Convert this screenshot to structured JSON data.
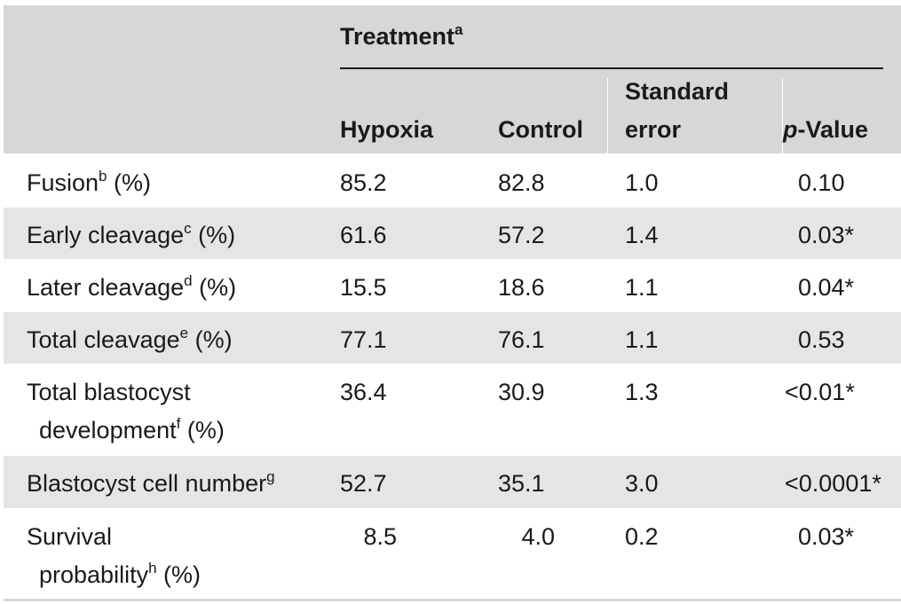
{
  "header": {
    "treatment": "Treatment",
    "treatment_sup": "a",
    "columns": {
      "hypoxia": "Hypoxia",
      "control": "Control",
      "se_line1": "Standard",
      "se_line2": "error",
      "p_italic": "p",
      "p_rest": "-Value"
    }
  },
  "rows": [
    {
      "label": "Fusion",
      "sup": "b",
      "suffix": " (%)",
      "hypoxia": "85.2",
      "control": "82.8",
      "se": "1.0",
      "p": "0.10"
    },
    {
      "label": "Early cleavage",
      "sup": "c",
      "suffix": " (%)",
      "hypoxia": "61.6",
      "control": "57.2",
      "se": "1.4",
      "p": "0.03*"
    },
    {
      "label": "Later cleavage",
      "sup": "d",
      "suffix": " (%)",
      "hypoxia": "15.5",
      "control": "18.6",
      "se": "1.1",
      "p": "0.04*"
    },
    {
      "label": "Total cleavage",
      "sup": "e",
      "suffix": " (%)",
      "hypoxia": "77.1",
      "control": "76.1",
      "se": "1.1",
      "p": "0.53"
    },
    {
      "label_line1": "Total blastocyst",
      "label_line2": "development",
      "sup": "f",
      "suffix": " (%)",
      "hypoxia": "36.4",
      "control": "30.9",
      "se": "1.3",
      "p": "<0.01*"
    },
    {
      "label": "Blastocyst cell number",
      "sup": "g",
      "suffix": "",
      "hypoxia": "52.7",
      "control": "35.1",
      "se": "3.0",
      "p": "<0.0001*"
    },
    {
      "label_line1": "Survival",
      "label_line2": "probability",
      "sup": "h",
      "suffix": " (%)",
      "hypoxia": "8.5",
      "control": "4.0",
      "se": "0.2",
      "p": "0.03*"
    }
  ]
}
